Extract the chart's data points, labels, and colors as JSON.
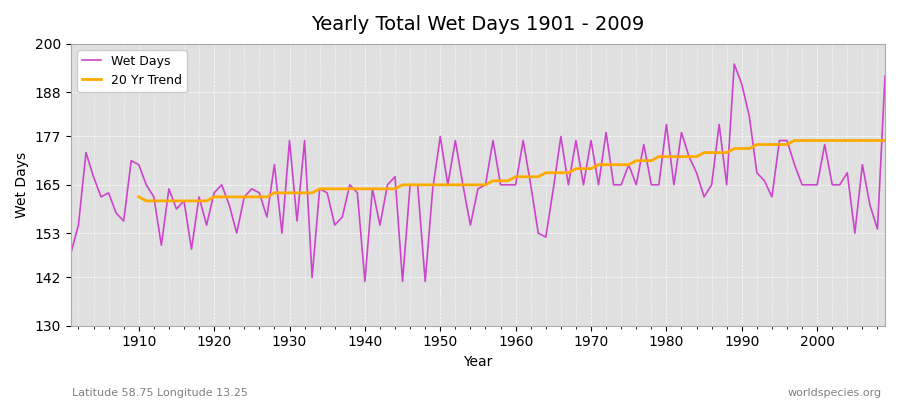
{
  "title": "Yearly Total Wet Days 1901 - 2009",
  "xlabel": "Year",
  "ylabel": "Wet Days",
  "footnote_left": "Latitude 58.75 Longitude 13.25",
  "footnote_right": "worldspecies.org",
  "legend_wet": "Wet Days",
  "legend_trend": "20 Yr Trend",
  "color_wet": "#cc44cc",
  "color_trend": "#ffaa00",
  "background_color": "#e0e0e0",
  "ylim": [
    130,
    200
  ],
  "yticks": [
    130,
    142,
    153,
    165,
    177,
    188,
    200
  ],
  "xlim": [
    1901,
    2009
  ],
  "xticks": [
    1910,
    1920,
    1930,
    1940,
    1950,
    1960,
    1970,
    1980,
    1990,
    2000
  ],
  "years": [
    1901,
    1902,
    1903,
    1904,
    1905,
    1906,
    1907,
    1908,
    1909,
    1910,
    1911,
    1912,
    1913,
    1914,
    1915,
    1916,
    1917,
    1918,
    1919,
    1920,
    1921,
    1922,
    1923,
    1924,
    1925,
    1926,
    1927,
    1928,
    1929,
    1930,
    1931,
    1932,
    1933,
    1934,
    1935,
    1936,
    1937,
    1938,
    1939,
    1940,
    1941,
    1942,
    1943,
    1944,
    1945,
    1946,
    1947,
    1948,
    1949,
    1950,
    1951,
    1952,
    1953,
    1954,
    1955,
    1956,
    1957,
    1958,
    1959,
    1960,
    1961,
    1962,
    1963,
    1964,
    1965,
    1966,
    1967,
    1968,
    1969,
    1970,
    1971,
    1972,
    1973,
    1974,
    1975,
    1976,
    1977,
    1978,
    1979,
    1980,
    1981,
    1982,
    1983,
    1984,
    1985,
    1986,
    1987,
    1988,
    1989,
    1990,
    1991,
    1992,
    1993,
    1994,
    1995,
    1996,
    1997,
    1998,
    1999,
    2000,
    2001,
    2002,
    2003,
    2004,
    2005,
    2006,
    2007,
    2008,
    2009
  ],
  "wet_days": [
    148,
    155,
    173,
    167,
    162,
    163,
    158,
    156,
    171,
    170,
    165,
    162,
    150,
    164,
    159,
    161,
    149,
    162,
    155,
    163,
    165,
    160,
    153,
    162,
    164,
    163,
    157,
    170,
    153,
    176,
    156,
    176,
    142,
    164,
    163,
    155,
    157,
    165,
    163,
    141,
    164,
    155,
    165,
    167,
    141,
    165,
    165,
    141,
    164,
    177,
    165,
    176,
    165,
    155,
    164,
    165,
    176,
    165,
    165,
    165,
    176,
    165,
    153,
    152,
    164,
    177,
    165,
    176,
    165,
    176,
    165,
    178,
    165,
    165,
    170,
    165,
    175,
    165,
    165,
    180,
    165,
    178,
    172,
    168,
    162,
    165,
    180,
    165,
    195,
    190,
    182,
    168,
    166,
    162,
    176,
    176,
    170,
    165,
    165,
    165,
    175,
    165,
    165,
    168,
    153,
    170,
    160,
    154,
    192
  ],
  "trend_years": [
    1910,
    1911,
    1912,
    1913,
    1914,
    1915,
    1916,
    1917,
    1918,
    1919,
    1920,
    1921,
    1922,
    1923,
    1924,
    1925,
    1926,
    1927,
    1928,
    1929,
    1930,
    1931,
    1932,
    1933,
    1934,
    1935,
    1936,
    1937,
    1938,
    1939,
    1940,
    1941,
    1942,
    1943,
    1944,
    1945,
    1946,
    1947,
    1948,
    1949,
    1950,
    1951,
    1952,
    1953,
    1954,
    1955,
    1956,
    1957,
    1958,
    1959,
    1960,
    1961,
    1962,
    1963,
    1964,
    1965,
    1966,
    1967,
    1968,
    1969,
    1970,
    1971,
    1972,
    1973,
    1974,
    1975,
    1976,
    1977,
    1978,
    1979,
    1980,
    1981,
    1982,
    1983,
    1984,
    1985,
    1986,
    1987,
    1988,
    1989,
    1990,
    1991,
    1992,
    1993,
    1994,
    1995,
    1996,
    1997,
    1998,
    1999,
    2000,
    2001,
    2002,
    2003,
    2004,
    2005,
    2006,
    2007,
    2008,
    2009
  ],
  "trend_values": [
    162,
    161,
    161,
    161,
    161,
    161,
    161,
    161,
    161,
    161,
    162,
    162,
    162,
    162,
    162,
    162,
    162,
    162,
    163,
    163,
    163,
    163,
    163,
    163,
    164,
    164,
    164,
    164,
    164,
    164,
    164,
    164,
    164,
    164,
    164,
    165,
    165,
    165,
    165,
    165,
    165,
    165,
    165,
    165,
    165,
    165,
    165,
    166,
    166,
    166,
    167,
    167,
    167,
    167,
    168,
    168,
    168,
    168,
    169,
    169,
    169,
    170,
    170,
    170,
    170,
    170,
    171,
    171,
    171,
    172,
    172,
    172,
    172,
    172,
    172,
    173,
    173,
    173,
    173,
    174,
    174,
    174,
    175,
    175,
    175,
    175,
    175,
    176,
    176,
    176,
    176,
    176,
    176,
    176,
    176,
    176,
    176,
    176,
    176,
    176
  ]
}
